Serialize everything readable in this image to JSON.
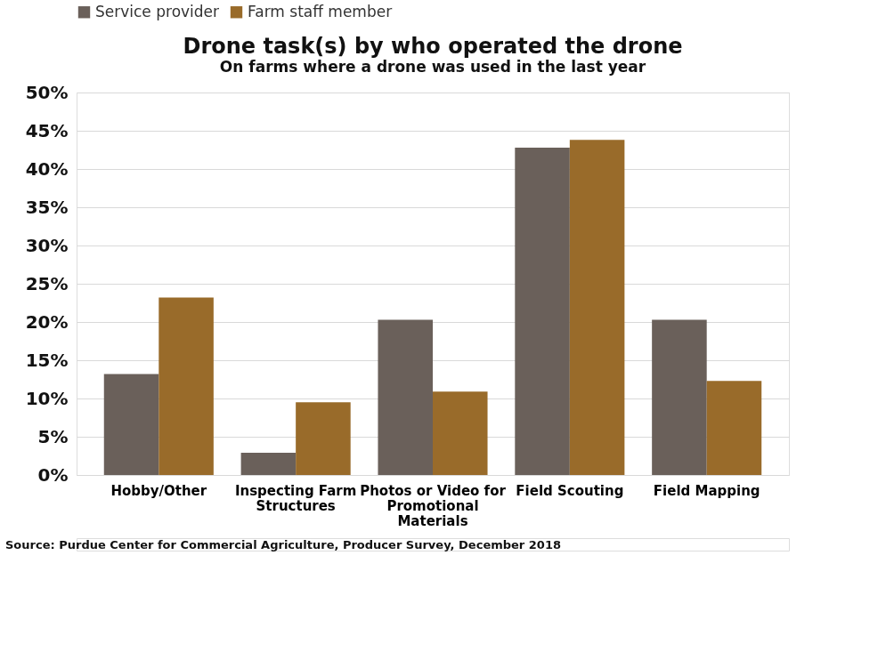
{
  "chart_data": {
    "type": "bar",
    "title": "Drone task(s) by who operated the drone",
    "subtitle": "On farms where a drone was used in the last year",
    "categories": [
      "Hobby/Other",
      "Inspecting Farm Structures",
      "Photos or Video for Promotional Materials",
      "Field Scouting",
      "Field Mapping"
    ],
    "series": [
      {
        "name": "Service provider",
        "color": "#6a605a",
        "values": [
          13.2,
          2.9,
          20.3,
          42.8,
          20.3
        ]
      },
      {
        "name": "Farm staff member",
        "color": "#996b2a",
        "values": [
          23.2,
          9.5,
          10.9,
          43.8,
          12.3
        ]
      }
    ],
    "ylim": [
      0,
      50
    ],
    "yticks": [
      {
        "value": 0,
        "label": "0%"
      },
      {
        "value": 5,
        "label": "5%"
      },
      {
        "value": 10,
        "label": "10%"
      },
      {
        "value": 15,
        "label": "15%"
      },
      {
        "value": 20,
        "label": "20%"
      },
      {
        "value": 25,
        "label": "25%"
      },
      {
        "value": 30,
        "label": "30%"
      },
      {
        "value": 35,
        "label": "35%"
      },
      {
        "value": 40,
        "label": "40%"
      },
      {
        "value": 45,
        "label": "45%"
      },
      {
        "value": 50,
        "label": "50%"
      }
    ],
    "grid": "y",
    "legend": "top",
    "annotations": [
      "Source: Purdue Center for Commercial Agriculture, Producer Survey, December 2018"
    ]
  }
}
